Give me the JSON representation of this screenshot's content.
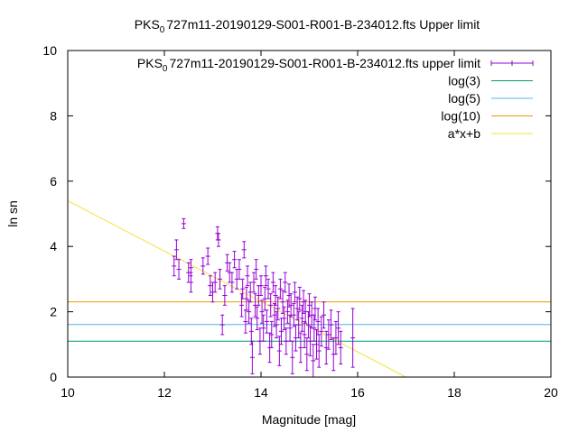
{
  "chart_data": {
    "type": "scatter",
    "title_prefix": "PKS",
    "title_subscript": "0",
    "title_suffix": "727m11-20190129-S001-R001-B-234012.fts Upper limit",
    "xlabel": "Magnitude [mag]",
    "ylabel": "ln sn",
    "xlim": [
      10,
      20
    ],
    "ylim": [
      0,
      10
    ],
    "xticks": [
      "10",
      "12",
      "14",
      "16",
      "18",
      "20"
    ],
    "yticks": [
      "0",
      "2",
      "4",
      "6",
      "8",
      "10"
    ],
    "grid": false,
    "legend_position": "top-right",
    "legend": [
      {
        "prefix": "PKS",
        "sub": "0",
        "suffix": "727m11-20190129-S001-R001-B-234012.fts upper limit",
        "style": "errorbar",
        "color": "#9400d3"
      },
      {
        "prefix": "log(3)",
        "sub": "",
        "suffix": "",
        "style": "line",
        "color": "#009e73"
      },
      {
        "prefix": "log(5)",
        "sub": "",
        "suffix": "",
        "style": "line",
        "color": "#56b4e9"
      },
      {
        "prefix": "log(10)",
        "sub": "",
        "suffix": "",
        "style": "line",
        "color": "#e69f00"
      },
      {
        "prefix": "a*x+b",
        "sub": "",
        "suffix": "",
        "style": "line",
        "color": "#f0e442"
      }
    ],
    "hlines": [
      {
        "name": "log(3)",
        "y": 1.0986,
        "color": "#009e73"
      },
      {
        "name": "log(5)",
        "y": 1.6094,
        "color": "#56b4e9"
      },
      {
        "name": "log(10)",
        "y": 2.3026,
        "color": "#e69f00"
      }
    ],
    "fit_line": {
      "name": "a*x+b",
      "x": [
        10,
        17.0
      ],
      "y": [
        5.4,
        0.0
      ],
      "color": "#f0e442"
    },
    "series": [
      {
        "style": "errorbar",
        "color": "#9400d3",
        "points": [
          [
            12.2,
            3.4,
            0.3
          ],
          [
            12.25,
            3.9,
            0.3
          ],
          [
            12.3,
            3.3,
            0.3
          ],
          [
            12.4,
            4.7,
            0.15
          ],
          [
            12.5,
            3.2,
            0.3
          ],
          [
            12.55,
            2.9,
            0.3
          ],
          [
            12.55,
            3.35,
            0.25
          ],
          [
            12.8,
            3.4,
            0.25
          ],
          [
            12.9,
            3.7,
            0.25
          ],
          [
            12.95,
            2.8,
            0.3
          ],
          [
            13.0,
            2.6,
            0.3
          ],
          [
            13.05,
            2.9,
            0.3
          ],
          [
            13.1,
            4.4,
            0.2
          ],
          [
            13.12,
            4.2,
            0.2
          ],
          [
            13.15,
            3.0,
            0.3
          ],
          [
            13.2,
            1.6,
            0.3
          ],
          [
            13.25,
            2.5,
            0.3
          ],
          [
            13.3,
            3.5,
            0.25
          ],
          [
            13.35,
            3.2,
            0.3
          ],
          [
            13.4,
            2.9,
            0.3
          ],
          [
            13.45,
            3.6,
            0.25
          ],
          [
            13.5,
            3.0,
            0.3
          ],
          [
            13.55,
            3.3,
            0.3
          ],
          [
            13.6,
            2.2,
            0.35
          ],
          [
            13.62,
            2.7,
            0.3
          ],
          [
            13.65,
            3.9,
            0.25
          ],
          [
            13.68,
            1.7,
            0.35
          ],
          [
            13.7,
            2.4,
            0.35
          ],
          [
            13.72,
            3.1,
            0.3
          ],
          [
            13.75,
            2.0,
            0.35
          ],
          [
            13.78,
            2.6,
            0.3
          ],
          [
            13.8,
            1.4,
            0.4
          ],
          [
            13.82,
            0.6,
            0.5
          ],
          [
            13.85,
            2.9,
            0.3
          ],
          [
            13.88,
            2.2,
            0.35
          ],
          [
            13.9,
            3.3,
            0.3
          ],
          [
            13.92,
            1.8,
            0.35
          ],
          [
            13.95,
            2.5,
            0.3
          ],
          [
            13.98,
            1.1,
            0.4
          ],
          [
            14.0,
            2.8,
            0.3
          ],
          [
            14.02,
            2.0,
            0.35
          ],
          [
            14.05,
            1.5,
            0.4
          ],
          [
            14.08,
            2.4,
            0.35
          ],
          [
            14.1,
            3.1,
            0.3
          ],
          [
            14.12,
            1.7,
            0.35
          ],
          [
            14.15,
            2.7,
            0.3
          ],
          [
            14.18,
            0.9,
            0.45
          ],
          [
            14.2,
            2.2,
            0.35
          ],
          [
            14.22,
            1.3,
            0.4
          ],
          [
            14.25,
            2.9,
            0.3
          ],
          [
            14.28,
            1.9,
            0.35
          ],
          [
            14.3,
            2.5,
            0.3
          ],
          [
            14.32,
            1.6,
            0.4
          ],
          [
            14.35,
            2.1,
            0.35
          ],
          [
            14.38,
            0.8,
            0.45
          ],
          [
            14.4,
            2.7,
            0.3
          ],
          [
            14.42,
            1.4,
            0.4
          ],
          [
            14.45,
            2.3,
            0.35
          ],
          [
            14.48,
            1.8,
            0.35
          ],
          [
            14.5,
            2.9,
            0.3
          ],
          [
            14.52,
            1.1,
            0.4
          ],
          [
            14.55,
            2.0,
            0.35
          ],
          [
            14.58,
            2.5,
            0.35
          ],
          [
            14.6,
            1.5,
            0.4
          ],
          [
            14.62,
            2.2,
            0.35
          ],
          [
            14.65,
            0.6,
            0.5
          ],
          [
            14.68,
            1.9,
            0.35
          ],
          [
            14.7,
            2.6,
            0.3
          ],
          [
            14.72,
            1.2,
            0.4
          ],
          [
            14.75,
            2.1,
            0.35
          ],
          [
            14.78,
            1.6,
            0.4
          ],
          [
            14.8,
            2.4,
            0.35
          ],
          [
            14.82,
            0.9,
            0.45
          ],
          [
            14.85,
            1.8,
            0.4
          ],
          [
            14.88,
            2.3,
            0.35
          ],
          [
            14.9,
            1.3,
            0.4
          ],
          [
            14.92,
            2.0,
            0.35
          ],
          [
            14.95,
            0.7,
            0.5
          ],
          [
            14.98,
            1.6,
            0.4
          ],
          [
            15.0,
            2.2,
            0.35
          ],
          [
            15.02,
            1.1,
            0.45
          ],
          [
            15.05,
            1.9,
            0.4
          ],
          [
            15.08,
            0.5,
            0.5
          ],
          [
            15.1,
            1.5,
            0.4
          ],
          [
            15.12,
            2.1,
            0.35
          ],
          [
            15.15,
            1.0,
            0.45
          ],
          [
            15.18,
            1.7,
            0.4
          ],
          [
            15.2,
            0.8,
            0.5
          ],
          [
            15.25,
            1.4,
            0.45
          ],
          [
            15.3,
            1.9,
            0.4
          ],
          [
            15.35,
            0.9,
            0.5
          ],
          [
            15.4,
            1.3,
            0.45
          ],
          [
            15.45,
            1.6,
            0.45
          ],
          [
            15.5,
            0.7,
            0.5
          ],
          [
            15.55,
            1.2,
            0.5
          ],
          [
            15.6,
            1.5,
            0.5
          ],
          [
            15.65,
            0.9,
            0.5
          ],
          [
            15.9,
            1.2,
            0.9
          ]
        ]
      }
    ]
  }
}
